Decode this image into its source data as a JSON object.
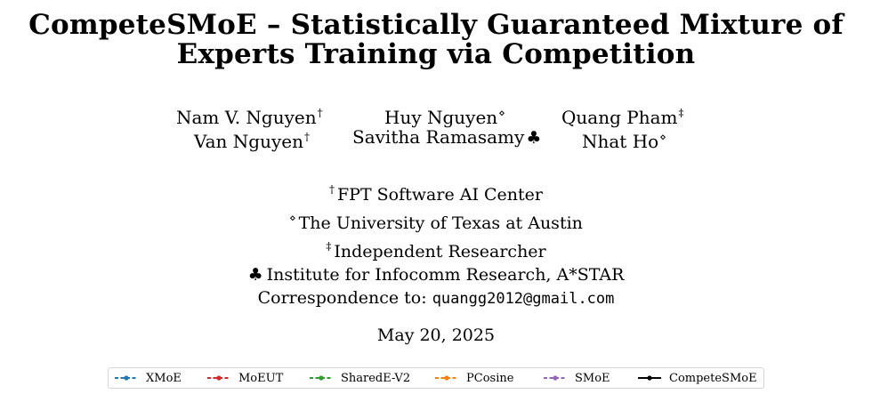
{
  "paper": {
    "title_line1": "CompeteSMoE – Statistically Guaranteed Mixture of",
    "title_line2": "Experts Training via Competition",
    "authors": [
      {
        "name": "Nam V. Nguyen",
        "mark": "†"
      },
      {
        "name": "Huy Nguyen",
        "mark": "⋄"
      },
      {
        "name": "Quang Pham",
        "mark": "‡"
      },
      {
        "name": "Van Nguyen",
        "mark": "†"
      },
      {
        "name": "Savitha Ramasamy",
        "mark": "♣"
      },
      {
        "name": "Nhat Ho",
        "mark": "⋄"
      }
    ],
    "affiliations": [
      {
        "mark": "†",
        "text": "FPT Software AI Center"
      },
      {
        "mark": "⋄",
        "text": "The University of Texas at Austin"
      },
      {
        "mark": "‡",
        "text": "Independent Researcher"
      },
      {
        "mark": "♣",
        "text": "Institute for Infocomm Research, A*STAR"
      }
    ],
    "correspondence_label": "Correspondence to:",
    "correspondence_email": "quangg2012@gmail.com",
    "date": "May 20, 2025"
  },
  "legend": {
    "items": [
      {
        "label": "XMoE",
        "color": "#1f77b4"
      },
      {
        "label": "MoEUT",
        "color": "#d62728"
      },
      {
        "label": "SharedE-V2",
        "color": "#2ca02c"
      },
      {
        "label": "PCosine",
        "color": "#ff7f0e"
      },
      {
        "label": "SMoE",
        "color": "#9467bd"
      },
      {
        "label": "CompeteSMoE",
        "color": "#000000"
      }
    ]
  }
}
